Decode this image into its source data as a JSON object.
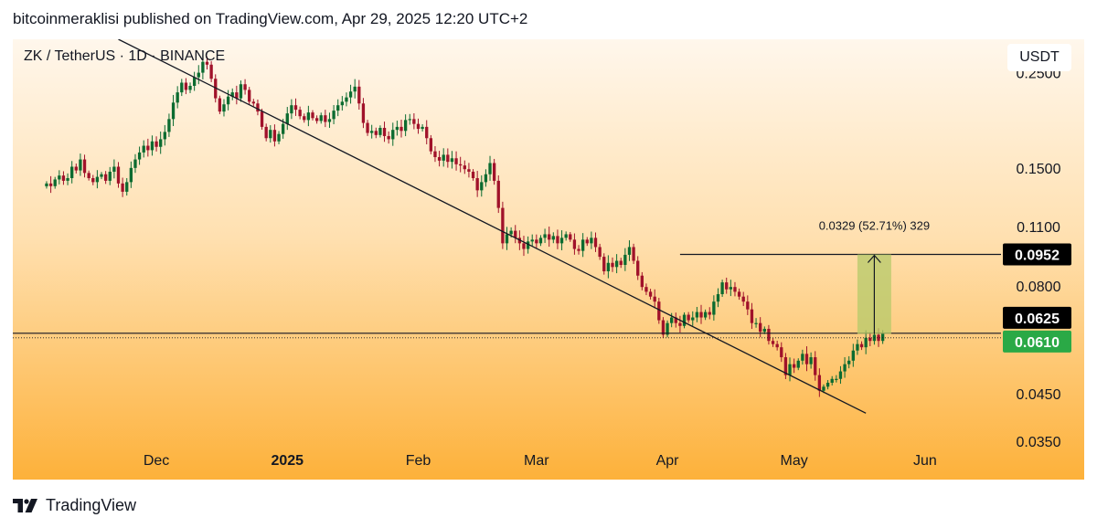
{
  "header": {
    "publisher_line": "bitcoinmeraklisi published on TradingView.com, Apr 29, 2025 12:20 UTC+2"
  },
  "symbol_label": "ZK / TetherUS · 1D · BINANCE",
  "currency_button": "USDT",
  "footer": {
    "brand": "TradingView"
  },
  "colors": {
    "bg_top": "#fff7ec",
    "bg_bottom": "#fdb13a",
    "up": "#0b6b30",
    "down": "#a0122a",
    "measure_fill": "#b5c96a",
    "current_price_badge": "#2aa946",
    "dark_badge": "#000000"
  },
  "chart_data": {
    "type": "candlestick",
    "title": "ZK / TetherUS · 1D · BINANCE",
    "y_scale": "log",
    "ylim": [
      0.0325,
      0.3
    ],
    "x_ticks": [
      {
        "label": "Dec",
        "date": "2024-12-01"
      },
      {
        "label": "2025",
        "date": "2025-01-01",
        "bold": true
      },
      {
        "label": "Feb",
        "date": "2025-02-01"
      },
      {
        "label": "Mar",
        "date": "2025-03-01"
      },
      {
        "label": "Apr",
        "date": "2025-04-01"
      },
      {
        "label": "May",
        "date": "2025-05-01"
      },
      {
        "label": "Jun",
        "date": "2025-06-01"
      }
    ],
    "x_range": [
      "2024-10-28",
      "2025-06-19"
    ],
    "y_ticks": [
      "0.2500",
      "0.1500",
      "0.1100",
      "0.0800",
      "0.0450",
      "0.0350"
    ],
    "series": [
      {
        "start": "2024-11-05",
        "closes": [
          0.139,
          0.137,
          0.142,
          0.145,
          0.141,
          0.143,
          0.152,
          0.149,
          0.158,
          0.147,
          0.143,
          0.14,
          0.144,
          0.146,
          0.141,
          0.148,
          0.152,
          0.139,
          0.133,
          0.14,
          0.151,
          0.158,
          0.164,
          0.17,
          0.166,
          0.174,
          0.169,
          0.176,
          0.183,
          0.196,
          0.214,
          0.226,
          0.238,
          0.229,
          0.234,
          0.245,
          0.251,
          0.266,
          0.262,
          0.243,
          0.219,
          0.204,
          0.212,
          0.221,
          0.226,
          0.219,
          0.236,
          0.229,
          0.215,
          0.213,
          0.204,
          0.188,
          0.177,
          0.185,
          0.174,
          0.181,
          0.191,
          0.202,
          0.211,
          0.206,
          0.199,
          0.195,
          0.203,
          0.197,
          0.194,
          0.2,
          0.193,
          0.196,
          0.205,
          0.211,
          0.215,
          0.22,
          0.227,
          0.233,
          0.213,
          0.192,
          0.182,
          0.184,
          0.18,
          0.187,
          0.179,
          0.176,
          0.185,
          0.188,
          0.184,
          0.195,
          0.196,
          0.191,
          0.186,
          0.188,
          0.177,
          0.165,
          0.16,
          0.157,
          0.162,
          0.156,
          0.159,
          0.154,
          0.153,
          0.15,
          0.148,
          0.143,
          0.134,
          0.14,
          0.146,
          0.155,
          0.141,
          0.122,
          0.101,
          0.106,
          0.108,
          0.104,
          0.101,
          0.098,
          0.102,
          0.103,
          0.101,
          0.104,
          0.106,
          0.103,
          0.105,
          0.101,
          0.104,
          0.106,
          0.103,
          0.098,
          0.097,
          0.103,
          0.101,
          0.104,
          0.099,
          0.094,
          0.087,
          0.091,
          0.089,
          0.092,
          0.09,
          0.095,
          0.099,
          0.092,
          0.085,
          0.08,
          0.078,
          0.076,
          0.074,
          0.067,
          0.062,
          0.066,
          0.068,
          0.066,
          0.065,
          0.069,
          0.067,
          0.068,
          0.07,
          0.068,
          0.07,
          0.069,
          0.074,
          0.077,
          0.082,
          0.079,
          0.08,
          0.078,
          0.076,
          0.074,
          0.071,
          0.066,
          0.066,
          0.063,
          0.064,
          0.06,
          0.059,
          0.058,
          0.055,
          0.05,
          0.053,
          0.052,
          0.054,
          0.056,
          0.053,
          0.055,
          0.05,
          0.046,
          0.047,
          0.048,
          0.049,
          0.049,
          0.051,
          0.053,
          0.054,
          0.057,
          0.059,
          0.058,
          0.061,
          0.06,
          0.062,
          0.06,
          0.0625
        ]
      }
    ],
    "annotations": {
      "trendline": {
        "from": [
          "2024-11-22",
          0.3
        ],
        "to": [
          "2025-05-18",
          0.0408
        ]
      },
      "support_level": {
        "value": 0.0625,
        "label": "0.0625"
      },
      "current_price": {
        "value": 0.061,
        "label": "0.0610"
      },
      "target_level": {
        "from_date": "2025-04-04",
        "value": 0.0952,
        "label": "0.0952"
      },
      "measure_box": {
        "from_date": "2025-05-16",
        "to_date": "2025-05-24",
        "low": 0.0623,
        "high": 0.0952
      },
      "measure_label": "0.0329 (52.71%) 329"
    }
  }
}
